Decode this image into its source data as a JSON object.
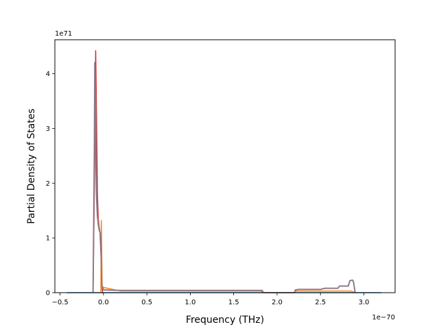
{
  "chart_data": {
    "type": "line",
    "title": "",
    "xlabel": "Frequency (THz)",
    "ylabel": "Partial Density of States",
    "x_offset_text": "1e−70",
    "y_offset_text": "1e71",
    "xlim": [
      -0.56,
      3.36
    ],
    "ylim": [
      0,
      4.62
    ],
    "grid": false,
    "x_ticks": [
      -0.5,
      0.0,
      0.5,
      1.0,
      1.5,
      2.0,
      2.5,
      3.0
    ],
    "x_tick_labels": [
      "−0.5",
      "0.0",
      "0.5",
      "1.0",
      "1.5",
      "2.0",
      "2.5",
      "3.0"
    ],
    "y_ticks": [
      0,
      1,
      2,
      3,
      4
    ],
    "y_tick_labels": [
      "0",
      "1",
      "2",
      "3",
      "4"
    ],
    "series": [
      {
        "color": "#1f77b4",
        "points": [
          [
            -0.42,
            0
          ],
          [
            3.2,
            0
          ]
        ]
      },
      {
        "color": "#d62728",
        "points": [
          [
            -0.12,
            0
          ],
          [
            -0.1,
            2.5
          ],
          [
            -0.09,
            4.42
          ],
          [
            -0.08,
            3.2
          ],
          [
            -0.07,
            1.8
          ],
          [
            -0.06,
            1.35
          ],
          [
            -0.05,
            1.2
          ],
          [
            -0.04,
            1.1
          ],
          [
            -0.03,
            0.7
          ],
          [
            -0.02,
            0.15
          ],
          [
            -0.01,
            0
          ]
        ]
      },
      {
        "color": "#ff7f0e",
        "points": [
          [
            -0.03,
            0
          ],
          [
            -0.025,
            1.32
          ],
          [
            -0.015,
            0.1
          ],
          [
            0.2,
            0.03
          ],
          [
            0.5,
            0.03
          ],
          [
            1.0,
            0.03
          ],
          [
            1.5,
            0.03
          ],
          [
            1.82,
            0.03
          ],
          [
            1.83,
            0
          ],
          [
            2.2,
            0
          ],
          [
            2.21,
            0.03
          ],
          [
            2.7,
            0.03
          ],
          [
            2.85,
            0.03
          ],
          [
            2.9,
            0
          ]
        ]
      },
      {
        "color": "#8c7a8a",
        "points": [
          [
            -0.12,
            0
          ],
          [
            -0.105,
            2.6
          ],
          [
            -0.1,
            4.2
          ],
          [
            -0.09,
            3.4
          ],
          [
            -0.085,
            2.2
          ],
          [
            -0.08,
            1.75
          ],
          [
            -0.07,
            1.4
          ],
          [
            -0.06,
            1.25
          ],
          [
            -0.05,
            1.15
          ],
          [
            -0.04,
            1.1
          ],
          [
            -0.03,
            1.0
          ],
          [
            -0.02,
            0.15
          ],
          [
            0.0,
            0.05
          ],
          [
            0.2,
            0.04
          ],
          [
            0.5,
            0.04
          ],
          [
            1.0,
            0.04
          ],
          [
            1.5,
            0.04
          ],
          [
            1.83,
            0.04
          ],
          [
            1.84,
            0
          ],
          [
            2.2,
            0
          ],
          [
            2.21,
            0.05
          ],
          [
            2.25,
            0.06
          ],
          [
            2.5,
            0.06
          ],
          [
            2.55,
            0.08
          ],
          [
            2.7,
            0.08
          ],
          [
            2.72,
            0.12
          ],
          [
            2.82,
            0.12
          ],
          [
            2.84,
            0.22
          ],
          [
            2.87,
            0.23
          ],
          [
            2.88,
            0.2
          ],
          [
            2.9,
            0
          ]
        ]
      }
    ]
  }
}
